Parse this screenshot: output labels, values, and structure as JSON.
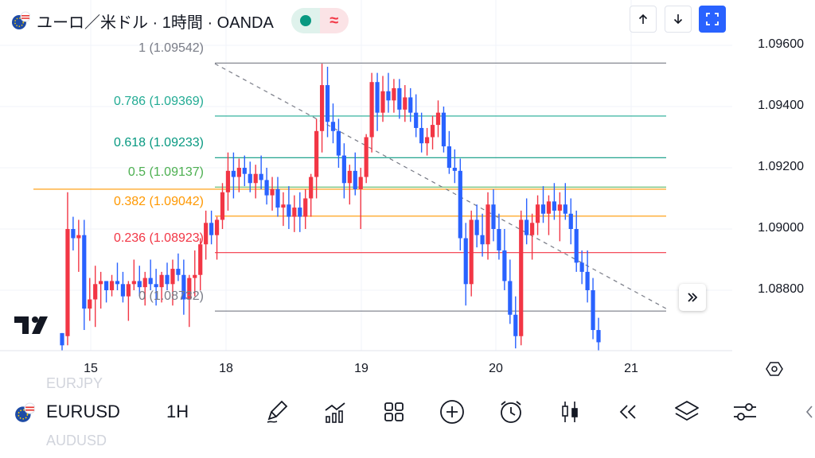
{
  "header": {
    "title": "ユーロ／米ドル · 1時間 · OANDA",
    "realtime_icon": "green-dot-icon",
    "delayed_icon": "approx-icon",
    "delayed_symbol": "≈"
  },
  "top_buttons": [
    {
      "name": "arrow-up-icon"
    },
    {
      "name": "arrow-down-icon"
    },
    {
      "name": "fullscreen-icon"
    }
  ],
  "price_axis": [
    "1.09600",
    "1.09400",
    "1.09200",
    "1.09000",
    "1.08800"
  ],
  "time_axis": [
    "15",
    "18",
    "19",
    "20",
    "21"
  ],
  "fib_levels": [
    {
      "label": "1 (1.09542)",
      "color": "#787b86"
    },
    {
      "label": "0.786 (1.09369)",
      "color": "#22ab94"
    },
    {
      "label": "0.618 (1.09233)",
      "color": "#089981"
    },
    {
      "label": "0.5 (1.09137)",
      "color": "#4caf50"
    },
    {
      "label": "0.382 (1.09042)",
      "color": "#ff9800"
    },
    {
      "label": "0.236 (1.08923)",
      "color": "#f23645"
    },
    {
      "label": "0 (1.08732)",
      "color": "#787b86"
    }
  ],
  "colors": {
    "up": "#f23645",
    "down": "#2962ff",
    "horizontal_line": "#ff9800",
    "accent": "#2962ff"
  },
  "toolbar": {
    "symbol": "EURUSD",
    "interval": "1H",
    "ghost_above": "EURJPY",
    "ghost_below": "AUDUSD",
    "icons": [
      "pen-icon",
      "indicators-icon",
      "layouts-icon",
      "add-icon",
      "alert-icon",
      "candles-icon",
      "replay-icon",
      "layers-icon",
      "settings-sliders-icon"
    ]
  },
  "chart_data": {
    "type": "candlestick",
    "symbol": "EURUSD",
    "interval": "1H",
    "x": [
      "15",
      "18",
      "19",
      "20",
      "21"
    ],
    "price_ticks": [
      1.096,
      1.094,
      1.092,
      1.09,
      1.088
    ],
    "fib_retracement": [
      {
        "ratio": 1,
        "price": 1.09542
      },
      {
        "ratio": 0.786,
        "price": 1.09369
      },
      {
        "ratio": 0.618,
        "price": 1.09233
      },
      {
        "ratio": 0.5,
        "price": 1.09137
      },
      {
        "ratio": 0.382,
        "price": 1.09042
      },
      {
        "ratio": 0.236,
        "price": 1.08923
      },
      {
        "ratio": 0,
        "price": 1.08732
      }
    ],
    "horizontal_line": 1.0913,
    "trend_line": {
      "from": 1.0954,
      "to": 1.0874
    },
    "ylim": [
      1.0861,
      1.0965
    ],
    "candles": [
      [
        1.0866,
        1.0866,
        1.086,
        1.0862
      ],
      [
        1.0865,
        1.0912,
        1.0862,
        1.09
      ],
      [
        1.09,
        1.0904,
        1.0893,
        1.0897
      ],
      [
        1.0897,
        1.0903,
        1.0886,
        1.0898
      ],
      [
        1.0898,
        1.0903,
        1.0867,
        1.0874
      ],
      [
        1.0874,
        1.0884,
        1.087,
        1.0877
      ],
      [
        1.0877,
        1.0888,
        1.0868,
        1.0882
      ],
      [
        1.0882,
        1.0886,
        1.0874,
        1.0883
      ],
      [
        1.0883,
        1.0883,
        1.0876,
        1.088
      ],
      [
        1.088,
        1.0885,
        1.0878,
        1.0883
      ],
      [
        1.0883,
        1.0889,
        1.088,
        1.0882
      ],
      [
        1.0882,
        1.0886,
        1.0876,
        1.0878
      ],
      [
        1.0878,
        1.0883,
        1.087,
        1.0882
      ],
      [
        1.0882,
        1.089,
        1.088,
        1.0883
      ],
      [
        1.0883,
        1.0888,
        1.0878,
        1.0881
      ],
      [
        1.0881,
        1.0886,
        1.0875,
        1.0884
      ],
      [
        1.0884,
        1.089,
        1.088,
        1.0882
      ],
      [
        1.0882,
        1.0887,
        1.0875,
        1.0881
      ],
      [
        1.0881,
        1.0886,
        1.0876,
        1.0885
      ],
      [
        1.0885,
        1.0889,
        1.088,
        1.0882
      ],
      [
        1.0882,
        1.089,
        1.0875,
        1.0887
      ],
      [
        1.0887,
        1.0892,
        1.0883,
        1.0885
      ],
      [
        1.0885,
        1.089,
        1.0872,
        1.0877
      ],
      [
        1.0877,
        1.0885,
        1.0868,
        1.0884
      ],
      [
        1.0884,
        1.0893,
        1.0878,
        1.0885
      ],
      [
        1.0885,
        1.0897,
        1.088,
        1.0895
      ],
      [
        1.0895,
        1.0906,
        1.089,
        1.0902
      ],
      [
        1.0902,
        1.0906,
        1.0895,
        1.0898
      ],
      [
        1.0898,
        1.0904,
        1.089,
        1.0903
      ],
      [
        1.0903,
        1.0915,
        1.09,
        1.0912
      ],
      [
        1.0912,
        1.0925,
        1.0906,
        1.0919
      ],
      [
        1.0919,
        1.0925,
        1.091,
        1.0917
      ],
      [
        1.0917,
        1.0923,
        1.0912,
        1.092
      ],
      [
        1.092,
        1.0924,
        1.0914,
        1.0918
      ],
      [
        1.0918,
        1.0922,
        1.0912,
        1.0915
      ],
      [
        1.0915,
        1.0921,
        1.091,
        1.0918
      ],
      [
        1.0918,
        1.0924,
        1.0913,
        1.0916
      ],
      [
        1.0916,
        1.092,
        1.0908,
        1.0911
      ],
      [
        1.0911,
        1.0917,
        1.0906,
        1.0913
      ],
      [
        1.0913,
        1.0917,
        1.0904,
        1.0907
      ],
      [
        1.0907,
        1.0912,
        1.0901,
        1.0908
      ],
      [
        1.0908,
        1.0914,
        1.09,
        1.0904
      ],
      [
        1.0904,
        1.0911,
        1.0899,
        1.0907
      ],
      [
        1.0907,
        1.0912,
        1.0899,
        1.0904
      ],
      [
        1.0904,
        1.0913,
        1.09,
        1.091
      ],
      [
        1.091,
        1.0918,
        1.0904,
        1.0917
      ],
      [
        1.0917,
        1.0936,
        1.091,
        1.0932
      ],
      [
        1.0932,
        1.0954,
        1.0925,
        1.0947
      ],
      [
        1.0947,
        1.0953,
        1.093,
        1.0935
      ],
      [
        1.0935,
        1.0941,
        1.0928,
        1.0932
      ],
      [
        1.0932,
        1.0936,
        1.092,
        1.0924
      ],
      [
        1.0924,
        1.0928,
        1.091,
        1.0915
      ],
      [
        1.0915,
        1.0921,
        1.0908,
        1.0919
      ],
      [
        1.0919,
        1.0925,
        1.0911,
        1.0913
      ],
      [
        1.0913,
        1.092,
        1.09,
        1.0917
      ],
      [
        1.0917,
        1.0931,
        1.0915,
        1.093
      ],
      [
        1.093,
        1.0951,
        1.0925,
        1.0948
      ],
      [
        1.0948,
        1.0951,
        1.0932,
        1.0938
      ],
      [
        1.0938,
        1.095,
        1.0935,
        1.0945
      ],
      [
        1.0945,
        1.0951,
        1.0938,
        1.0942
      ],
      [
        1.0942,
        1.0949,
        1.0938,
        1.0946
      ],
      [
        1.0946,
        1.0949,
        1.0936,
        1.0939
      ],
      [
        1.0939,
        1.0947,
        1.0935,
        1.0943
      ],
      [
        1.0943,
        1.0946,
        1.0935,
        1.0938
      ],
      [
        1.0938,
        1.0944,
        1.093,
        1.0933
      ],
      [
        1.0933,
        1.0938,
        1.0925,
        1.0928
      ],
      [
        1.0928,
        1.0933,
        1.0924,
        1.093
      ],
      [
        1.093,
        1.0937,
        1.0926,
        1.0934
      ],
      [
        1.0934,
        1.0942,
        1.093,
        1.0938
      ],
      [
        1.0938,
        1.094,
        1.0925,
        1.0927
      ],
      [
        1.0927,
        1.0932,
        1.0918,
        1.092
      ],
      [
        1.092,
        1.0926,
        1.0915,
        1.0919
      ],
      [
        1.0919,
        1.0923,
        1.0893,
        1.0897
      ],
      [
        1.0897,
        1.0902,
        1.0875,
        1.0882
      ],
      [
        1.0882,
        1.0906,
        1.0878,
        1.0903
      ],
      [
        1.0903,
        1.0908,
        1.0894,
        1.0898
      ],
      [
        1.0898,
        1.0905,
        1.0891,
        1.0895
      ],
      [
        1.0895,
        1.0912,
        1.089,
        1.0908
      ],
      [
        1.0908,
        1.0913,
        1.0896,
        1.09
      ],
      [
        1.09,
        1.0905,
        1.089,
        1.0893
      ],
      [
        1.0893,
        1.09,
        1.088,
        1.0883
      ],
      [
        1.0883,
        1.089,
        1.0869,
        1.0872
      ],
      [
        1.0872,
        1.0878,
        1.0861,
        1.0865
      ],
      [
        1.0865,
        1.0906,
        1.0862,
        1.0903
      ],
      [
        1.0903,
        1.091,
        1.0895,
        1.0898
      ],
      [
        1.0898,
        1.0905,
        1.089,
        1.0902
      ],
      [
        1.0902,
        1.0911,
        1.0898,
        1.0908
      ],
      [
        1.0908,
        1.0914,
        1.0902,
        1.0905
      ],
      [
        1.0905,
        1.0911,
        1.0898,
        1.0909
      ],
      [
        1.0909,
        1.0915,
        1.0903,
        1.0906
      ],
      [
        1.0906,
        1.0912,
        1.0896,
        1.0908
      ],
      [
        1.0908,
        1.0915,
        1.0903,
        1.0905
      ],
      [
        1.0905,
        1.091,
        1.0895,
        1.09
      ],
      [
        1.09,
        1.0906,
        1.0886,
        1.0889
      ],
      [
        1.0889,
        1.0893,
        1.0882,
        1.0886
      ],
      [
        1.0886,
        1.0893,
        1.0876,
        1.088
      ],
      [
        1.088,
        1.0884,
        1.0864,
        1.0867
      ],
      [
        1.0867,
        1.0871,
        1.086,
        1.0863
      ]
    ]
  }
}
